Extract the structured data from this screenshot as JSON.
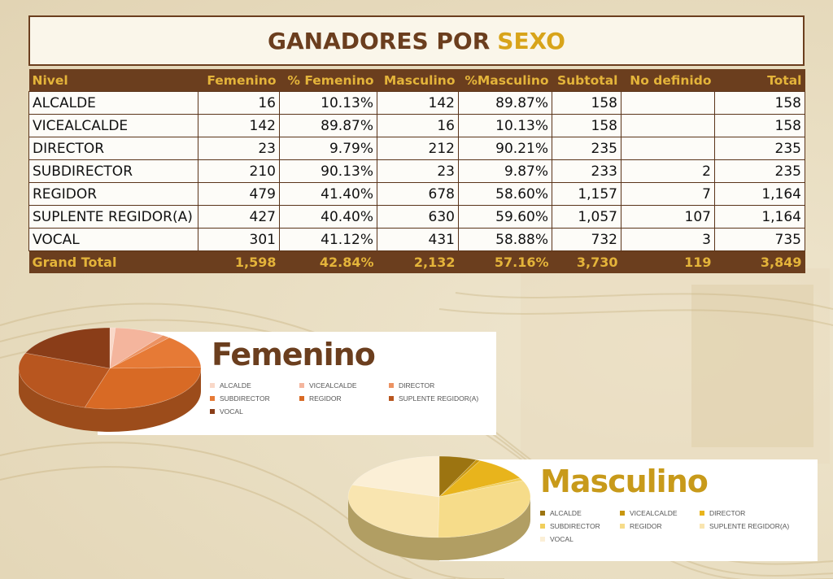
{
  "title": {
    "main": "GANADORES POR",
    "accent": "SEXO"
  },
  "table": {
    "headers": [
      "Nivel",
      "Femenino",
      "% Femenino",
      "Masculino",
      "%Masculino",
      "Subtotal",
      "No definido",
      "Total"
    ],
    "rows": [
      [
        "ALCALDE",
        "16",
        "10.13%",
        "142",
        "89.87%",
        "158",
        "",
        "158"
      ],
      [
        "VICEALCALDE",
        "142",
        "89.87%",
        "16",
        "10.13%",
        "158",
        "",
        "158"
      ],
      [
        "DIRECTOR",
        "23",
        "9.79%",
        "212",
        "90.21%",
        "235",
        "",
        "235"
      ],
      [
        "SUBDIRECTOR",
        "210",
        "90.13%",
        "23",
        "9.87%",
        "233",
        "2",
        "235"
      ],
      [
        "REGIDOR",
        "479",
        "41.40%",
        "678",
        "58.60%",
        "1,157",
        "7",
        "1,164"
      ],
      [
        "SUPLENTE REGIDOR(A)",
        "427",
        "40.40%",
        "630",
        "59.60%",
        "1,057",
        "107",
        "1,164"
      ],
      [
        "VOCAL",
        "301",
        "41.12%",
        "431",
        "58.88%",
        "732",
        "3",
        "735"
      ]
    ],
    "total": [
      "Grand Total",
      "1,598",
      "42.84%",
      "2,132",
      "57.16%",
      "3,730",
      "119",
      "3,849"
    ]
  },
  "chart_data": [
    {
      "type": "pie",
      "title": "Femenino",
      "categories": [
        "ALCALDE",
        "VICEALCALDE",
        "DIRECTOR",
        "SUBDIRECTOR",
        "REGIDOR",
        "SUPLENTE REGIDOR(A)",
        "VOCAL"
      ],
      "values": [
        16,
        142,
        23,
        210,
        479,
        427,
        301
      ],
      "colors": [
        "#f9d8c8",
        "#f4b59d",
        "#ec9262",
        "#e67a36",
        "#d86a25",
        "#b8561f",
        "#8a3d18"
      ],
      "legend": "right"
    },
    {
      "type": "pie",
      "title": "Masculino",
      "categories": [
        "ALCALDE",
        "VICEALCALDE",
        "DIRECTOR",
        "SUBDIRECTOR",
        "REGIDOR",
        "SUPLENTE REGIDOR(A)",
        "VOCAL"
      ],
      "values": [
        142,
        16,
        212,
        23,
        678,
        630,
        431
      ],
      "colors": [
        "#9c7411",
        "#c8960f",
        "#e8b41c",
        "#f1cf5c",
        "#f6dc8a",
        "#f9e5b0",
        "#fbefd6"
      ],
      "legend": "right"
    }
  ]
}
